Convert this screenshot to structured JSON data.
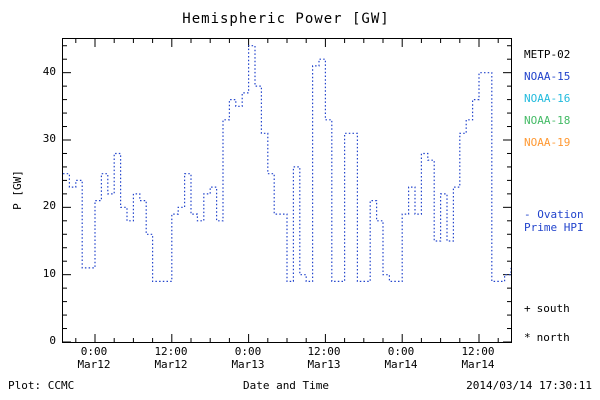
{
  "title": "Hemispheric Power [GW]",
  "footer": {
    "plot_credit": "Plot: CCMC",
    "timestamp": "2014/03/14 17:30:11"
  },
  "legend": {
    "satellites": [
      {
        "label": "METP-02",
        "color": "#000000"
      },
      {
        "label": "NOAA-15",
        "color": "#2244cc"
      },
      {
        "label": "NOAA-16",
        "color": "#22bbdd"
      },
      {
        "label": "NOAA-18",
        "color": "#44bb66"
      },
      {
        "label": "NOAA-19",
        "color": "#ff9933"
      }
    ],
    "line_entry": {
      "line1": "- Ovation",
      "line2": "Prime HPI",
      "color": "#2244cc"
    },
    "marker_entries": [
      {
        "marker": "+",
        "label": "south"
      },
      {
        "marker": "*",
        "label": "north"
      }
    ]
  },
  "chart_data": {
    "type": "line",
    "subtype": "step",
    "line_style": "dotted",
    "title": "Hemispheric Power [GW]",
    "xlabel": "Date and Time",
    "ylabel": "P [GW]",
    "ylim": [
      0,
      45
    ],
    "grid": false,
    "y_ticks": [
      0,
      10,
      20,
      30,
      40
    ],
    "x_axis": {
      "total_hours": 70,
      "approx_range": "Mar11 19:00 - Mar14 17:00",
      "minor_tick_every_hours": 3,
      "major_ticks": [
        {
          "hour": 5,
          "time": "0:00",
          "date": "Mar12"
        },
        {
          "hour": 17,
          "time": "12:00",
          "date": "Mar12"
        },
        {
          "hour": 29,
          "time": "0:00",
          "date": "Mar13"
        },
        {
          "hour": 41,
          "time": "12:00",
          "date": "Mar13"
        },
        {
          "hour": 53,
          "time": "0:00",
          "date": "Mar14"
        },
        {
          "hour": 65,
          "time": "12:00",
          "date": "Mar14"
        }
      ]
    },
    "series": [
      {
        "name": "Ovation Prime HPI",
        "color": "#2244cc",
        "start_hour": 0,
        "step_hours": 1,
        "values_gw": [
          25,
          23,
          24,
          11,
          11,
          21,
          25,
          22,
          28,
          20,
          18,
          22,
          21,
          16,
          9,
          9,
          9,
          19,
          20,
          25,
          19,
          18,
          22,
          23,
          18,
          33,
          36,
          35,
          37,
          44,
          38,
          31,
          25,
          19,
          19,
          9,
          26,
          10,
          9,
          41,
          42,
          33,
          9,
          9,
          31,
          31,
          9,
          9,
          21,
          18,
          10,
          9,
          9,
          19,
          23,
          19,
          28,
          27,
          15,
          22,
          15,
          23,
          31,
          33,
          36,
          40,
          40,
          9,
          9,
          10,
          11
        ]
      }
    ]
  }
}
